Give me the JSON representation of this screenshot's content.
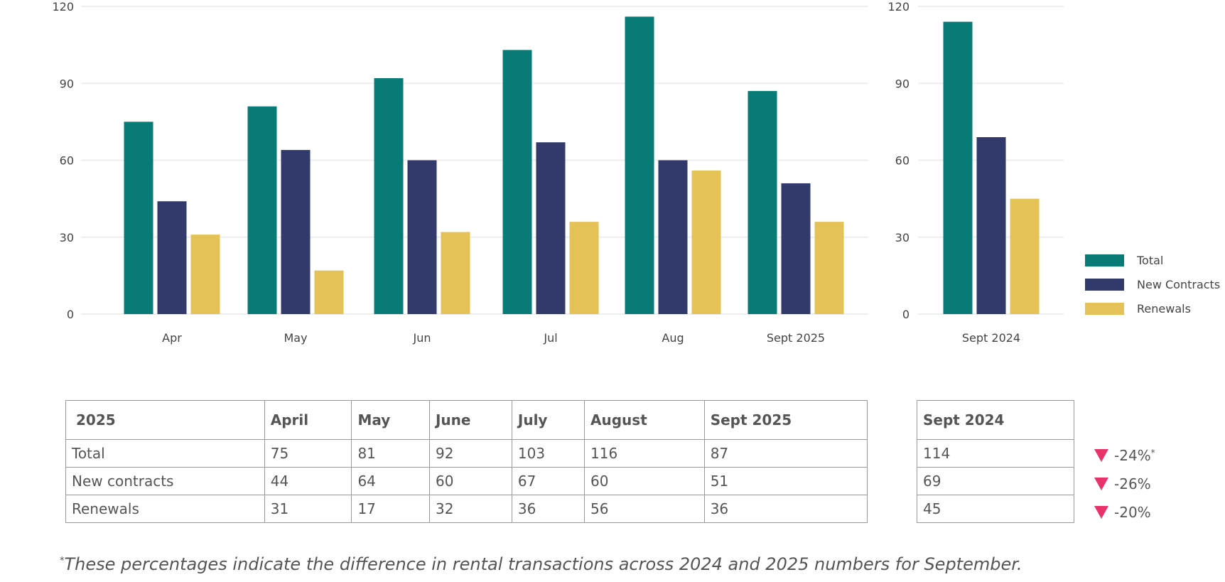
{
  "chart_data": [
    {
      "type": "bar",
      "categories": [
        "Apr",
        "May",
        "Jun",
        "Jul",
        "Aug",
        "Sept 2025"
      ],
      "series": [
        {
          "name": "Total",
          "values": [
            75,
            81,
            92,
            103,
            116,
            87
          ]
        },
        {
          "name": "New Contracts",
          "values": [
            44,
            64,
            60,
            67,
            60,
            51
          ]
        },
        {
          "name": "Renewals",
          "values": [
            31,
            17,
            32,
            36,
            56,
            36
          ]
        }
      ],
      "ylim": [
        0,
        120
      ],
      "yticks": [
        0,
        30,
        60,
        90,
        120
      ],
      "grid": true
    },
    {
      "type": "bar",
      "categories": [
        "Sept 2024"
      ],
      "series": [
        {
          "name": "Total",
          "values": [
            114
          ]
        },
        {
          "name": "New Contracts",
          "values": [
            69
          ]
        },
        {
          "name": "Renewals",
          "values": [
            45
          ]
        }
      ],
      "ylim": [
        0,
        120
      ],
      "yticks": [
        0,
        30,
        60,
        90,
        120
      ],
      "grid": true,
      "legend": "right"
    }
  ],
  "colors": {
    "Total": "#087b76",
    "New Contracts": "#313a6b",
    "Renewals": "#e5c257",
    "down": "#e8336a"
  },
  "legend": [
    "Total",
    "New Contracts",
    "Renewals"
  ],
  "table": {
    "headers": [
      "2025",
      "April",
      "May",
      "June",
      "July",
      "August",
      "Sept 2025"
    ],
    "rows": [
      [
        "Total",
        "75",
        "81",
        "92",
        "103",
        "116",
        "87"
      ],
      [
        "New contracts",
        "44",
        "64",
        "60",
        "67",
        "60",
        "51"
      ],
      [
        "Renewals",
        "31",
        "17",
        "32",
        "36",
        "56",
        "36"
      ]
    ]
  },
  "table2": {
    "header": "Sept 2024",
    "rows": [
      "114",
      "69",
      "45"
    ]
  },
  "deltas": [
    "-24%",
    "-26%",
    "-20%"
  ],
  "delta_note_mark": "*",
  "footnote": {
    "mark": "*",
    "text": "These percentages indicate the difference in rental transactions across 2024 and 2025 numbers for September."
  }
}
